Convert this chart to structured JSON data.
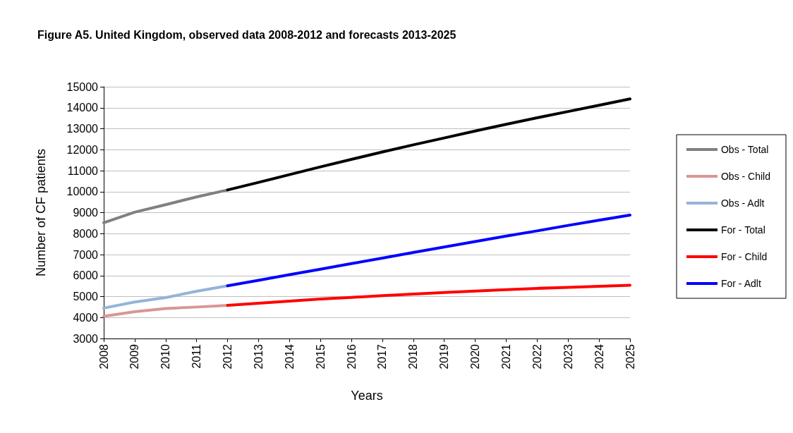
{
  "chart_data": {
    "type": "line",
    "title": "Figure A5. United Kingdom, observed data 2008-2012 and forecasts 2013-2025",
    "xlabel": "Years",
    "ylabel": "Number of CF patients",
    "categories": [
      "2008",
      "2009",
      "2010",
      "2011",
      "2012",
      "2013",
      "2014",
      "2015",
      "2016",
      "2017",
      "2018",
      "2019",
      "2020",
      "2021",
      "2022",
      "2023",
      "2024",
      "2025"
    ],
    "series": [
      {
        "name": "Obs - Total",
        "color": "#808080",
        "values": [
          8520,
          9020,
          9380,
          9750,
          10080,
          null,
          null,
          null,
          null,
          null,
          null,
          null,
          null,
          null,
          null,
          null,
          null,
          null
        ]
      },
      {
        "name": "Obs - Child",
        "color": "#d99694",
        "values": [
          4060,
          4280,
          4430,
          4500,
          4580,
          null,
          null,
          null,
          null,
          null,
          null,
          null,
          null,
          null,
          null,
          null,
          null,
          null
        ]
      },
      {
        "name": "Obs - Adlt",
        "color": "#95b3d7",
        "values": [
          4450,
          4740,
          4950,
          5250,
          5510,
          null,
          null,
          null,
          null,
          null,
          null,
          null,
          null,
          null,
          null,
          null,
          null,
          null
        ]
      },
      {
        "name": "For - Total",
        "color": "#000000",
        "values": [
          null,
          null,
          null,
          null,
          10080,
          10440,
          10810,
          11180,
          11540,
          11890,
          12230,
          12560,
          12890,
          13210,
          13520,
          13820,
          14120,
          14420
        ]
      },
      {
        "name": "For - Child",
        "color": "#ff0000",
        "values": [
          null,
          null,
          null,
          null,
          4580,
          4680,
          4780,
          4880,
          4960,
          5040,
          5120,
          5190,
          5260,
          5330,
          5390,
          5440,
          5490,
          5540
        ]
      },
      {
        "name": "For - Adlt",
        "color": "#0000ff",
        "values": [
          null,
          null,
          null,
          null,
          5510,
          5770,
          6040,
          6300,
          6570,
          6830,
          7100,
          7360,
          7620,
          7880,
          8130,
          8390,
          8640,
          8880
        ]
      }
    ],
    "ylim": [
      3000,
      15000
    ],
    "yticks": [
      3000,
      4000,
      5000,
      6000,
      7000,
      8000,
      9000,
      10000,
      11000,
      12000,
      13000,
      14000,
      15000
    ],
    "grid": "y",
    "legend": "right",
    "marker": "none",
    "line_style": "solid"
  }
}
